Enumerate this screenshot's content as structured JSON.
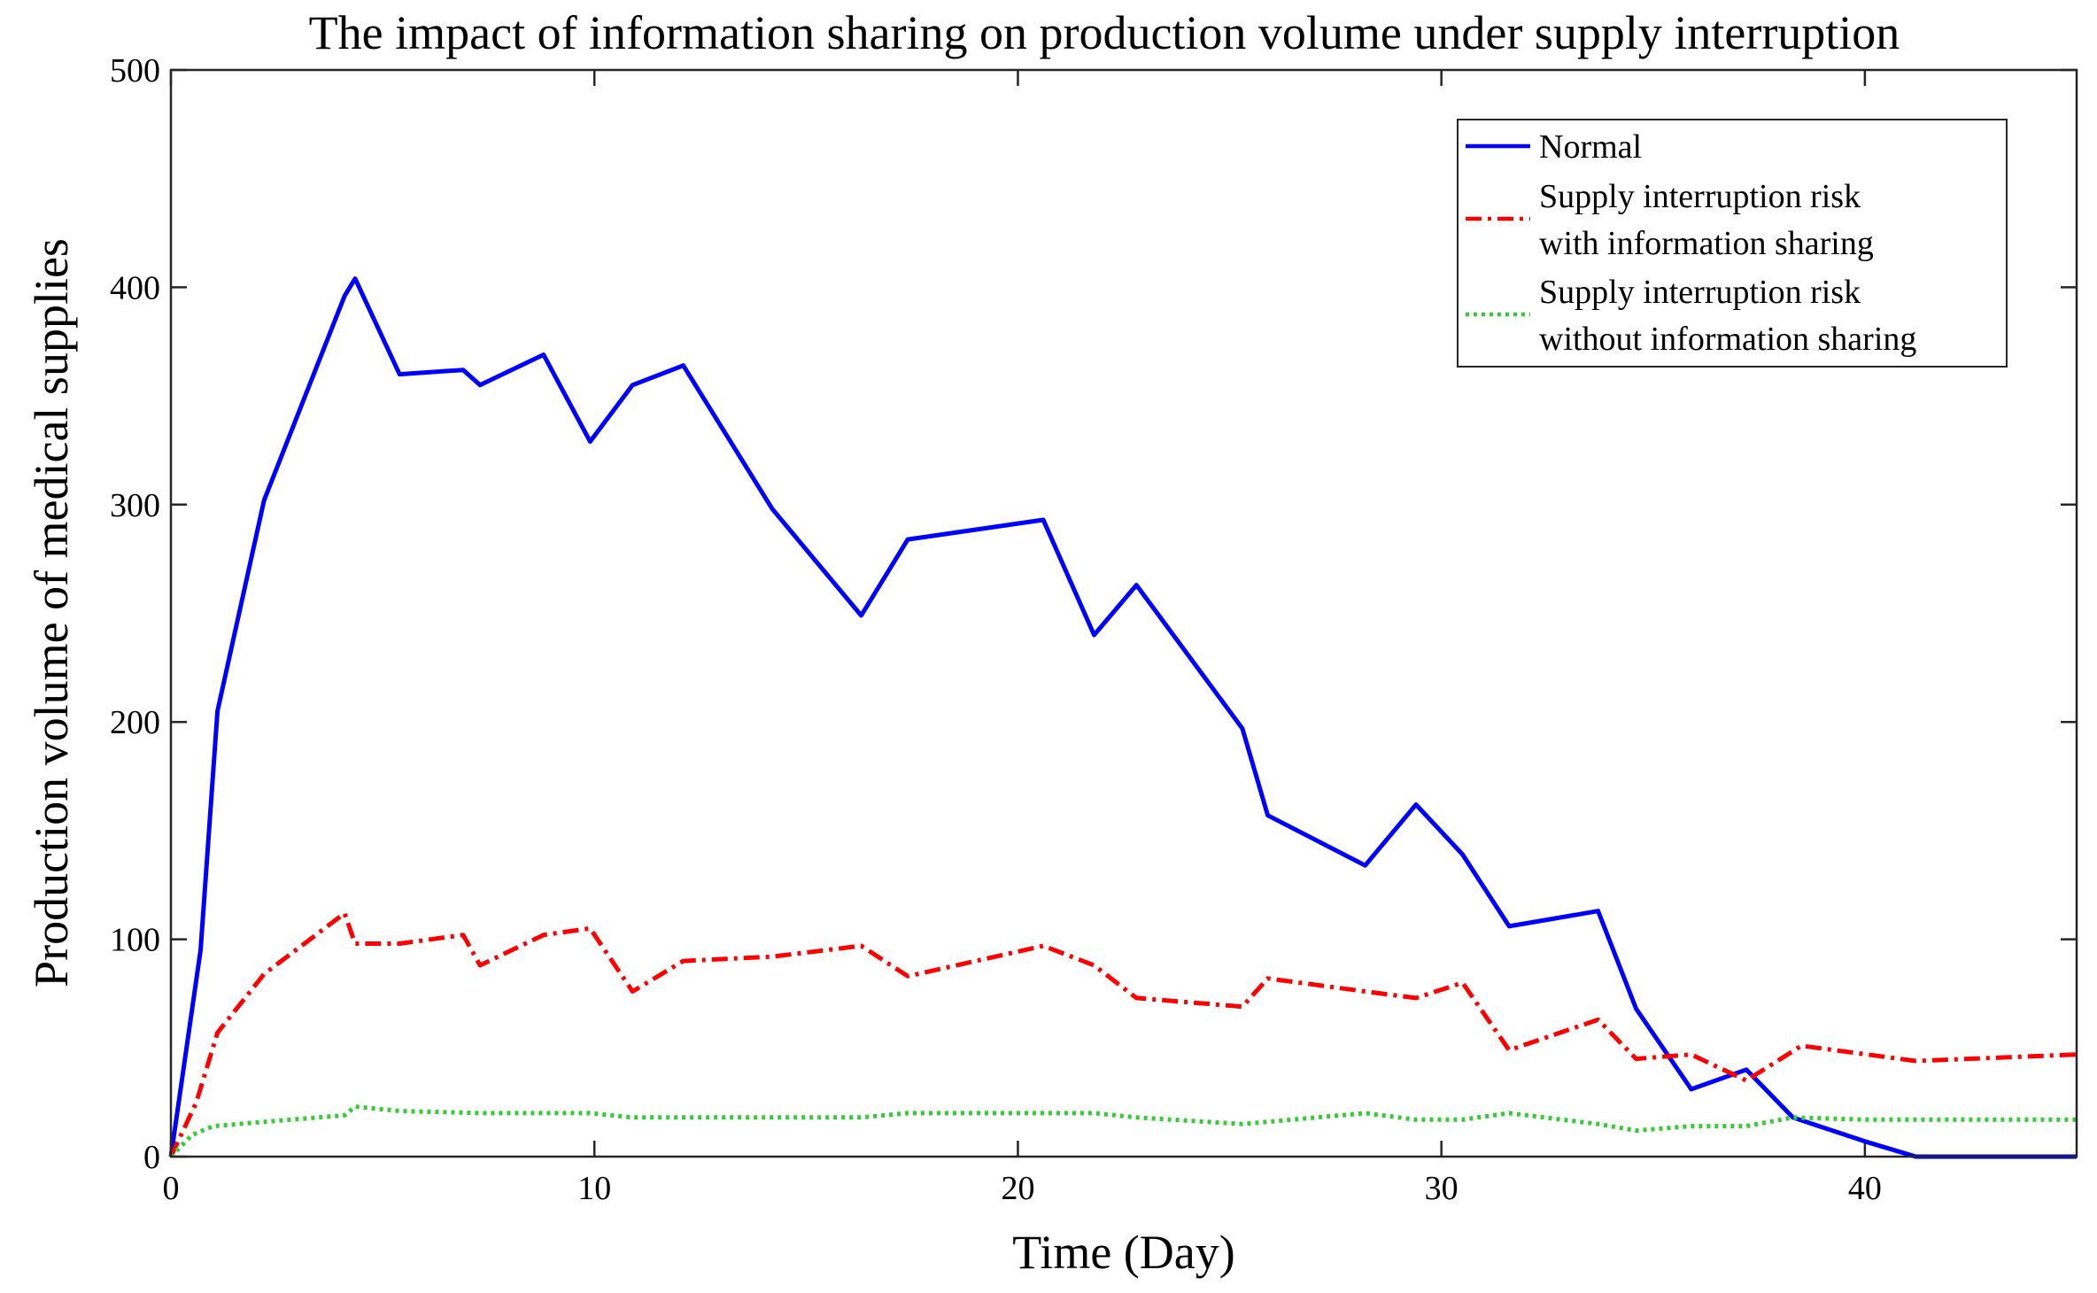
{
  "chart_data": {
    "type": "line",
    "title": "The impact of information sharing on production volume under supply interruption",
    "xlabel": "Time (Day)",
    "ylabel": "Production volume of medical supplies",
    "xlim": [
      0,
      45
    ],
    "ylim": [
      0,
      500
    ],
    "xticks": [
      0,
      10,
      20,
      30,
      40
    ],
    "yticks": [
      0,
      100,
      200,
      300,
      400,
      500
    ],
    "legend_position": "top-right",
    "series": [
      {
        "name": "Normal",
        "color": "#0000ff",
        "style": "solid",
        "x": [
          0,
          0.7,
          1.1,
          2.2,
          4.1,
          4.35,
          5.4,
          6.9,
          7.3,
          8.8,
          9.9,
          10.9,
          12.1,
          14.2,
          16.3,
          17.4,
          20.6,
          21.8,
          22.8,
          25.3,
          25.9,
          28.2,
          29.4,
          30.5,
          31.6,
          33.7,
          34.6,
          35.9,
          37.2,
          38.3,
          40.0,
          41.2,
          45.0
        ],
        "y": [
          0,
          95,
          205,
          302,
          396,
          404,
          360,
          362,
          355,
          369,
          329,
          355,
          364,
          298,
          249,
          284,
          293,
          240,
          263,
          197,
          157,
          134,
          162,
          139,
          106,
          113,
          68,
          31,
          40,
          18,
          7,
          0,
          0
        ]
      },
      {
        "name": "Supply interruption risk\nwith information sharing",
        "color": "#ff0000",
        "style": "dashdot",
        "x": [
          0,
          0.6,
          1.1,
          2.2,
          4.1,
          4.35,
          5.4,
          6.9,
          7.3,
          8.8,
          9.9,
          10.9,
          12.1,
          14.2,
          16.3,
          17.4,
          20.6,
          21.8,
          22.8,
          25.3,
          25.9,
          28.2,
          29.4,
          30.5,
          31.6,
          33.7,
          34.6,
          35.9,
          37.2,
          38.5,
          41.2,
          45.0
        ],
        "y": [
          0,
          25,
          57,
          84,
          112,
          98,
          98,
          102,
          88,
          102,
          105,
          76,
          90,
          92,
          97,
          83,
          97,
          88,
          73,
          69,
          82,
          76,
          73,
          80,
          49,
          63,
          45,
          47,
          35,
          51,
          44,
          47
        ]
      },
      {
        "name": "Supply interruption risk\nwithout information sharing",
        "color": "#33cc33",
        "style": "dotted",
        "x": [
          0,
          0.5,
          1.0,
          2.2,
          4.1,
          4.35,
          5.4,
          7.3,
          9.9,
          10.9,
          12.1,
          14.2,
          16.3,
          17.4,
          20.6,
          21.8,
          22.8,
          25.3,
          25.9,
          28.2,
          29.4,
          30.5,
          31.6,
          33.7,
          34.6,
          35.9,
          37.2,
          38.3,
          40.0,
          45.0
        ],
        "y": [
          0,
          10,
          14,
          16,
          19,
          23,
          21,
          20,
          20,
          18,
          18,
          18,
          18,
          20,
          20,
          20,
          18,
          15,
          16,
          20,
          17,
          17,
          20,
          15,
          12,
          14,
          14,
          18,
          17,
          17
        ]
      }
    ]
  }
}
